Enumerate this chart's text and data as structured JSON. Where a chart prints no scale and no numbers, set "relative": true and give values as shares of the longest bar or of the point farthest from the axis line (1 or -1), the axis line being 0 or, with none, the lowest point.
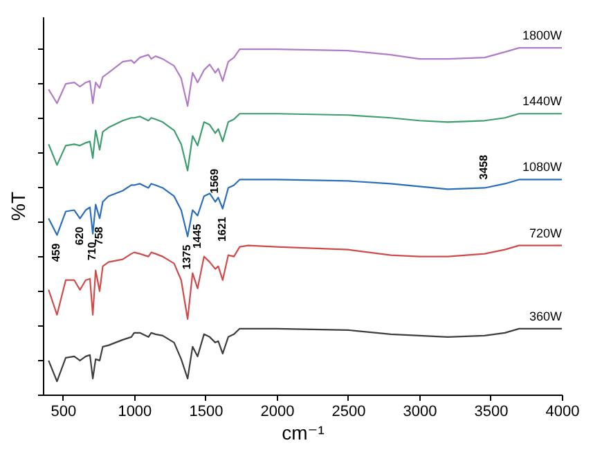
{
  "chart_data": {
    "type": "line",
    "relative": true,
    "xlabel": "cm⁻¹",
    "ylabel": "%T",
    "x": [
      400,
      459,
      520,
      580,
      620,
      660,
      690,
      710,
      730,
      758,
      780,
      820,
      920,
      980,
      1000,
      1040,
      1100,
      1120,
      1150,
      1200,
      1280,
      1330,
      1375,
      1410,
      1445,
      1490,
      1530,
      1569,
      1590,
      1621,
      1660,
      1700,
      1740,
      1800,
      2000,
      2500,
      2800,
      3000,
      3200,
      3458,
      3600,
      3700,
      4000
    ],
    "xlim": [
      360,
      4000
    ],
    "xticks": [
      500,
      1000,
      1500,
      2000,
      2500,
      3000,
      3500,
      4000
    ],
    "grid": false,
    "series": [
      {
        "name": "1800W",
        "color": "#b07cc6",
        "values": [
          0.88,
          0.84,
          0.896,
          0.9,
          0.888,
          0.9,
          0.904,
          0.84,
          0.9,
          0.884,
          0.916,
          0.928,
          0.96,
          0.964,
          0.956,
          0.972,
          0.98,
          0.968,
          0.976,
          0.968,
          0.948,
          0.912,
          0.832,
          0.928,
          0.9,
          0.936,
          0.952,
          0.928,
          0.94,
          0.904,
          0.96,
          0.972,
          0.996,
          0.996,
          0.996,
          0.992,
          0.98,
          0.968,
          0.968,
          0.972,
          0.988,
          1.0,
          1.0
        ]
      },
      {
        "name": "1440W",
        "color": "#3c9e6e",
        "values": [
          0.722,
          0.662,
          0.718,
          0.722,
          0.718,
          0.726,
          0.73,
          0.682,
          0.762,
          0.706,
          0.758,
          0.77,
          0.79,
          0.798,
          0.798,
          0.802,
          0.79,
          0.798,
          0.794,
          0.786,
          0.762,
          0.722,
          0.646,
          0.746,
          0.718,
          0.786,
          0.778,
          0.754,
          0.766,
          0.73,
          0.786,
          0.794,
          0.81,
          0.81,
          0.81,
          0.806,
          0.798,
          0.79,
          0.786,
          0.79,
          0.798,
          0.81,
          0.81
        ]
      },
      {
        "name": "1080W",
        "color": "#2a6ebb",
        "values": [
          0.508,
          0.46,
          0.528,
          0.532,
          0.508,
          0.532,
          0.54,
          0.464,
          0.548,
          0.508,
          0.556,
          0.572,
          0.588,
          0.604,
          0.604,
          0.608,
          0.596,
          0.608,
          0.604,
          0.596,
          0.572,
          0.532,
          0.456,
          0.532,
          0.516,
          0.572,
          0.58,
          0.556,
          0.568,
          0.536,
          0.596,
          0.604,
          0.62,
          0.62,
          0.62,
          0.616,
          0.608,
          0.6,
          0.592,
          0.596,
          0.608,
          0.62,
          0.62
        ]
      },
      {
        "name": "720W",
        "color": "#d04a4a",
        "values": [
          0.302,
          0.23,
          0.33,
          0.33,
          0.302,
          0.33,
          0.334,
          0.23,
          0.358,
          0.298,
          0.37,
          0.382,
          0.39,
          0.406,
          0.41,
          0.406,
          0.398,
          0.41,
          0.406,
          0.398,
          0.378,
          0.33,
          0.218,
          0.35,
          0.306,
          0.398,
          0.382,
          0.362,
          0.37,
          0.33,
          0.402,
          0.398,
          0.426,
          0.43,
          0.426,
          0.418,
          0.402,
          0.398,
          0.398,
          0.406,
          0.418,
          0.43,
          0.43
        ]
      },
      {
        "name": "360W",
        "color": "#3d3d3d",
        "values": [
          0.098,
          0.038,
          0.106,
          0.11,
          0.098,
          0.11,
          0.114,
          0.046,
          0.102,
          0.098,
          0.138,
          0.142,
          0.158,
          0.166,
          0.178,
          0.178,
          0.166,
          0.178,
          0.174,
          0.17,
          0.15,
          0.102,
          0.046,
          0.138,
          0.11,
          0.174,
          0.166,
          0.15,
          0.154,
          0.118,
          0.166,
          0.174,
          0.19,
          0.19,
          0.19,
          0.186,
          0.174,
          0.17,
          0.166,
          0.17,
          0.178,
          0.19,
          0.19
        ]
      }
    ],
    "annotations": [
      {
        "text": "459",
        "x": 459,
        "y": 0.46
      },
      {
        "text": "620",
        "x": 620,
        "y": 0.508
      },
      {
        "text": "710",
        "x": 710,
        "y": 0.464
      },
      {
        "text": "758",
        "x": 758,
        "y": 0.508
      },
      {
        "text": "1375",
        "x": 1375,
        "y": 0.456
      },
      {
        "text": "1445",
        "x": 1445,
        "y": 0.516
      },
      {
        "text": "1569",
        "x": 1569,
        "y": 0.556
      },
      {
        "text": "1621",
        "x": 1621,
        "y": 0.536
      },
      {
        "text": "3458",
        "x": 3458,
        "y": 0.596
      }
    ]
  }
}
